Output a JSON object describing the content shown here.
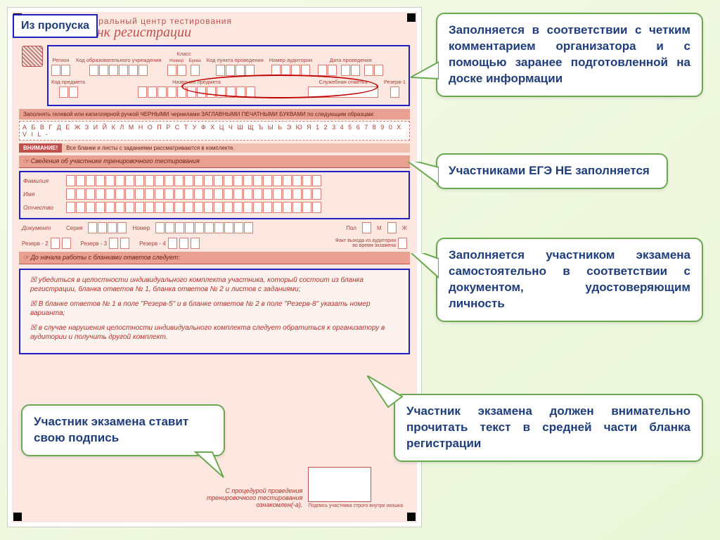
{
  "form": {
    "center_title": "Федеральный центр тестирования",
    "form_title": "Бланк регистрации",
    "fields_top": {
      "region": "Регион",
      "edu_code": "Код образовательного учреждения",
      "class": "Класс",
      "class_num": "Номер",
      "class_let": "Буква",
      "point_code": "Код пункта проведения",
      "aud_num": "Номер аудитории",
      "date": "Дата проведения"
    },
    "fields_second": {
      "subj_code": "Код предмета",
      "subj_name": "Название предмета",
      "service_mark": "Служебная отметка",
      "reserve1": "Резерв-1"
    },
    "instr_pen": "Заполнять гелевой или капиллярной ручкой ЧЕРНЫМИ чернилами ЗАГЛАВНЫМИ ПЕЧАТНЫМИ БУКВАМИ по следующим образцам:",
    "alphabet": "А Б В Г Д Е Ж З И Й К Л М Н О П Р С Т У Ф Х Ц Ч Ш Щ Ъ Ы Ь Э Ю Я   1 2 3 4 5 6 7 8 9 0 X V I L -",
    "attention_label": "ВНИМАНИЕ!",
    "attention_text": "Все бланки и листы с заданиями рассматриваются в комплекте.",
    "participant_section": "Сведения об участнике тренировочного тестирования",
    "name_fields": {
      "surname": "Фамилия",
      "name": "Имя",
      "patronymic": "Отчество"
    },
    "doc": {
      "label": "Документ",
      "series": "Серия",
      "number": "Номер",
      "sex": "Пол",
      "m": "М",
      "f": "Ж"
    },
    "reserves": {
      "r2": "Резерв - 2",
      "r3": "Резерв - 3",
      "r4": "Резерв - 4",
      "exit": "Факт выхода из аудитории во время экзамена"
    },
    "before_start": "До начала работы с бланками ответов следует:",
    "instructions": [
      "☒ убедиться в целостности индивидуального комплекта участника, который состоит из бланка регистрации, бланка ответов № 1, бланка ответов № 2 и листов с заданиями;",
      "☒ В бланке ответов № 1 в поле \"Резерв-5\" и в бланке ответов № 2 в поле \"Резерв-8\" указать номер варианта;",
      "☒ в случае нарушения целостности индивидуального комплекта следует обратиться к организатору в аудитории и получить другой комплект."
    ],
    "sig_text": "С процедурой проведения тренировочного тестирования ознакомлен(-а).",
    "sig_sub": "Подпись участника строго внутри окошка"
  },
  "callouts": {
    "pass_tag": "Из пропуска",
    "c1": "Заполняется в соответствии с четким комментарием организатора и с помощью заранее подготовленной на доске информации",
    "c2": "Участниками ЕГЭ НЕ заполняется",
    "c3": "Заполняется участником экзамена самостоятельно в соответствии с документом, удостоверяющим личность",
    "c4": "Участник экзамена должен внимательно прочитать текст в средней части бланка регистрации",
    "c5": "Участник экзамена ставит свою подпись"
  },
  "colors": {
    "callout_border": "#6aa84f",
    "callout_text": "#1f3d7a",
    "form_bg": "#fce8e1",
    "form_accent": "#c0504d",
    "highlight_blue": "#2020c0"
  }
}
